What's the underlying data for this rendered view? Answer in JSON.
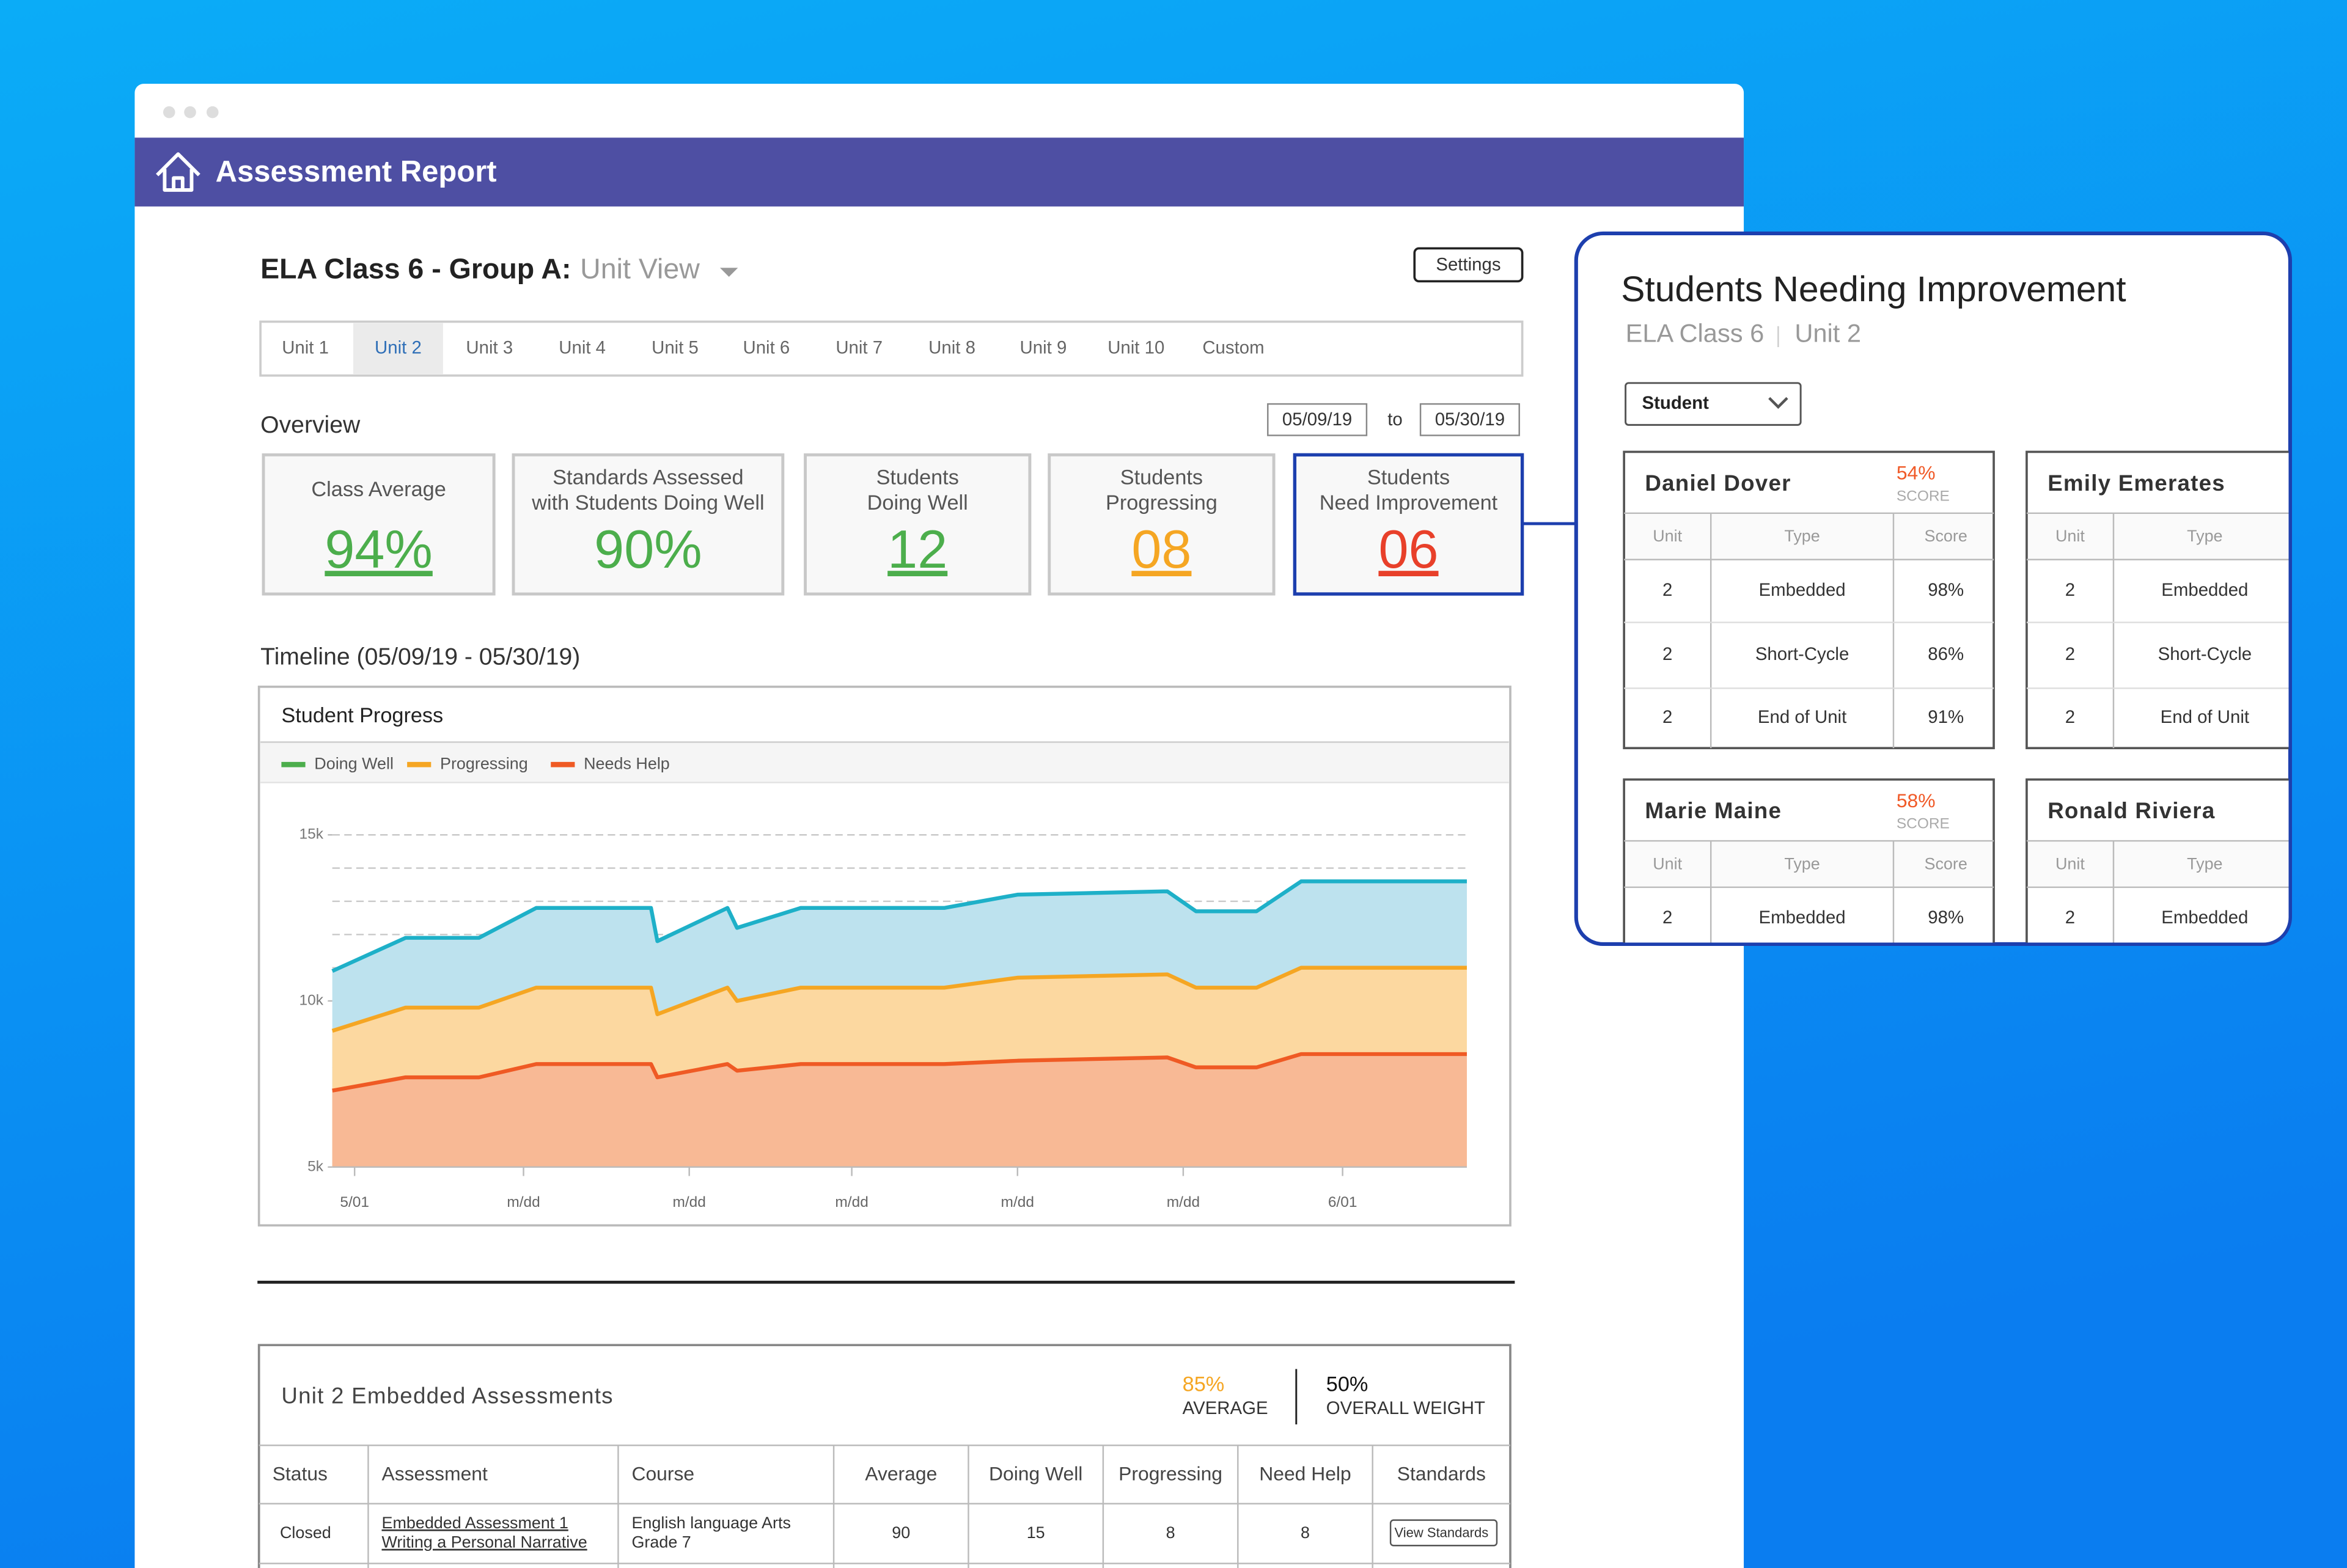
{
  "header": {
    "title": "Assessment Report"
  },
  "page_title": {
    "class": "ELA Class 6 - Group A:",
    "view": "Unit View"
  },
  "settings_button": "Settings",
  "tabs": {
    "items": [
      "Unit 1",
      "Unit 2",
      "Unit 3",
      "Unit 4",
      "Unit 5",
      "Unit 6",
      "Unit 7",
      "Unit 8",
      "Unit 9",
      "Unit 10",
      "Custom"
    ],
    "selected_index": 1
  },
  "overview": {
    "title": "Overview",
    "date_from": "05/09/19",
    "date_sep": "to",
    "date_to": "05/30/19",
    "cards": [
      {
        "label": [
          "Class Average"
        ],
        "value": "94%",
        "color": "#4cae4c",
        "underline": true,
        "highlight": false
      },
      {
        "label": [
          "Standards Assessed",
          "with Students Doing Well"
        ],
        "value": "90%",
        "color": "#4cae4c",
        "underline": false,
        "highlight": false
      },
      {
        "label": [
          "Students",
          "Doing Well"
        ],
        "value": "12",
        "color": "#4cae4c",
        "underline": true,
        "highlight": false
      },
      {
        "label": [
          "Students",
          "Progressing"
        ],
        "value": "08",
        "color": "#f5a623",
        "underline": true,
        "highlight": false
      },
      {
        "label": [
          "Students",
          "Need Improvement"
        ],
        "value": "06",
        "color": "#e8402a",
        "underline": true,
        "highlight": true
      }
    ]
  },
  "timeline_title": "Timeline (05/09/19 - 05/30/19)",
  "chart_data": {
    "type": "area",
    "title": "Student Progress",
    "legend": "top-left",
    "x": [
      0.3,
      2.6,
      4.9,
      6.7,
      10.3,
      10.5,
      12.7,
      13.0,
      15.0,
      19.5,
      21.8,
      26.5,
      27.4,
      29.3,
      30.7,
      35.9
    ],
    "xlim": [
      0.3,
      35.9
    ],
    "xticks": [
      {
        "value": 1,
        "label": "5/01"
      },
      {
        "value": 6.3,
        "label": "m/dd"
      },
      {
        "value": 11.5,
        "label": "m/dd"
      },
      {
        "value": 16.6,
        "label": "m/dd"
      },
      {
        "value": 21.8,
        "label": "m/dd"
      },
      {
        "value": 27,
        "label": "m/dd"
      },
      {
        "value": 32,
        "label": "6/01"
      }
    ],
    "ylim": [
      5000,
      15000
    ],
    "yticks": [
      {
        "value": 5000,
        "label": "5k"
      },
      {
        "value": 10000,
        "label": "10k"
      },
      {
        "value": 15000,
        "label": "15k"
      }
    ],
    "grid": true,
    "grid_yticks": [
      6000,
      7000,
      8000,
      9000,
      10000,
      11000,
      12000,
      13000,
      14000,
      15000
    ],
    "series": [
      {
        "name": "Doing Well",
        "color": "#4cae4c",
        "line_color": "#1eb0c8",
        "fill_color": "#bde2ee",
        "values": [
          10900,
          11900,
          11900,
          12800,
          12800,
          11800,
          12800,
          12200,
          12800,
          12800,
          13200,
          13300,
          12700,
          12700,
          13600,
          13600
        ]
      },
      {
        "name": "Progressing",
        "color": "#f5a623",
        "line_color": "#f5a623",
        "fill_color": "#fcd8a0",
        "values": [
          9100,
          9800,
          9800,
          10400,
          10400,
          9600,
          10400,
          10000,
          10400,
          10400,
          10700,
          10800,
          10400,
          10400,
          11000,
          11000
        ]
      },
      {
        "name": "Needs Help",
        "color": "#ef5a24",
        "line_color": "#ef5a24",
        "fill_color": "#f8b995",
        "values": [
          7300,
          7700,
          7700,
          8100,
          8100,
          7700,
          8100,
          7900,
          8100,
          8100,
          8200,
          8300,
          8000,
          8000,
          8400,
          8400
        ]
      }
    ]
  },
  "assessments": {
    "title": "Unit 2 Embedded Assessments",
    "average": "85%",
    "average_label": "AVERAGE",
    "weight": "50%",
    "weight_label": "OVERALL WEIGHT",
    "columns": [
      "Status",
      "Assessment",
      "Course",
      "Average",
      "Doing Well",
      "Progressing",
      "Need Help",
      "Standards"
    ],
    "rows": [
      [
        "Closed",
        [
          "Embedded Assessment 1",
          "Writing a Personal Narrative"
        ],
        [
          "English language Arts",
          "Grade 7"
        ],
        90,
        15,
        8,
        8,
        "View Standards"
      ]
    ]
  },
  "panel": {
    "title": "Students Needing Improvement",
    "subtitle": [
      "ELA Class 6",
      "Unit 2"
    ],
    "dropdown": "Student",
    "students": [
      {
        "name": "Daniel Dover",
        "score": "54%",
        "score_label": "SCORE",
        "columns": [
          "Unit",
          "Type",
          "Score"
        ],
        "rows": [
          [
            "2",
            "Embedded",
            "98%"
          ],
          [
            "2",
            "Short-Cycle",
            "86%"
          ],
          [
            "2",
            "End of Unit",
            "91%"
          ]
        ]
      },
      {
        "name": "Emily Emerates",
        "columns": [
          "Unit",
          "Type"
        ],
        "rows": [
          [
            "2",
            "Embedded"
          ],
          [
            "2",
            "Short-Cycle"
          ],
          [
            "2",
            "End of Unit"
          ]
        ]
      },
      {
        "name": "Marie Maine",
        "score": "58%",
        "score_label": "SCORE",
        "columns": [
          "Unit",
          "Type",
          "Score"
        ],
        "rows": [
          [
            "2",
            "Embedded",
            "98%"
          ]
        ]
      },
      {
        "name": "Ronald Riviera",
        "columns": [
          "Unit",
          "Type"
        ],
        "rows": [
          [
            "2",
            "Embedded"
          ]
        ]
      }
    ]
  }
}
